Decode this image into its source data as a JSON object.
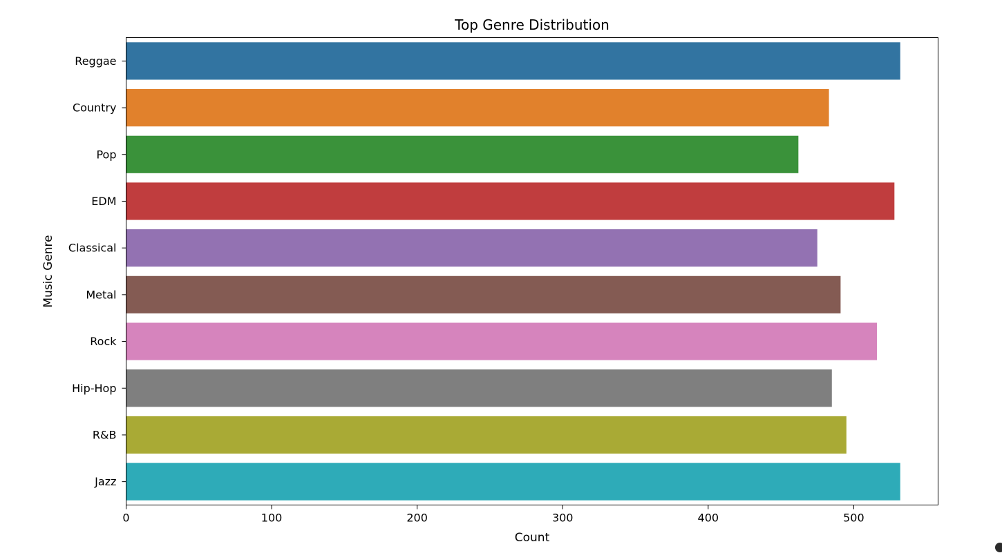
{
  "chart_data": {
    "type": "bar",
    "orientation": "horizontal",
    "title": "Top Genre Distribution",
    "xlabel": "Count",
    "ylabel": "Music Genre",
    "categories": [
      "Reggae",
      "Country",
      "Pop",
      "EDM",
      "Classical",
      "Metal",
      "Rock",
      "Hip-Hop",
      "R&B",
      "Jazz"
    ],
    "values": [
      532,
      483,
      462,
      528,
      475,
      491,
      516,
      485,
      495,
      532
    ],
    "colors": [
      "#3274a1",
      "#e1812c",
      "#3a923a",
      "#c03d3e",
      "#9372b2",
      "#845b53",
      "#d684bd",
      "#7f7f7f",
      "#a9aa35",
      "#2eabb8"
    ],
    "xlim": [
      0,
      558
    ],
    "xticks": [
      0,
      100,
      200,
      300,
      400,
      500
    ],
    "grid": false,
    "legend": "none"
  }
}
